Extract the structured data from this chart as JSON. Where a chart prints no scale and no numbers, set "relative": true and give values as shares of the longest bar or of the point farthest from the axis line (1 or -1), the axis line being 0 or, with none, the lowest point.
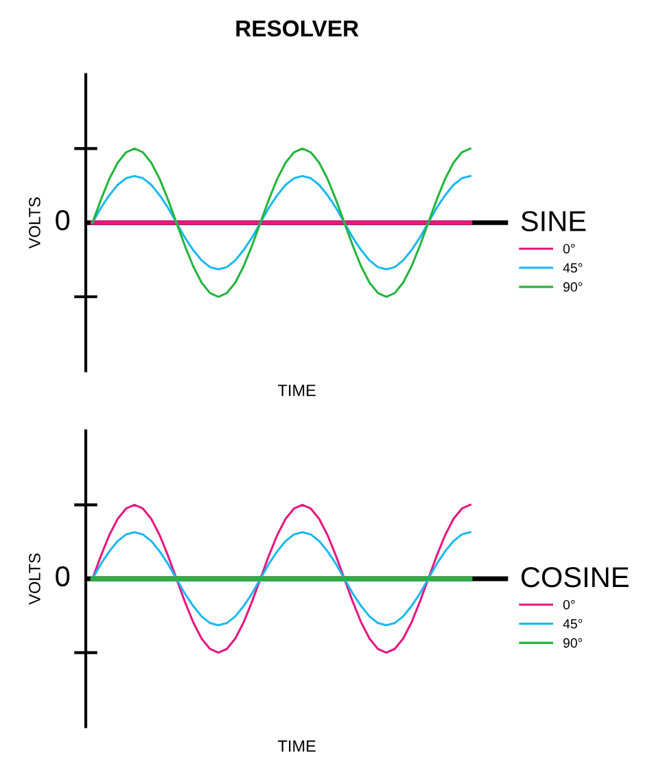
{
  "chart_data": [
    {
      "type": "line",
      "title": "RESOLVER",
      "xlabel": "TIME",
      "ylabel": "VOLTS",
      "legend_title": "SINE",
      "legend": "right",
      "relative": true,
      "annotations": [
        "0"
      ],
      "categories": [
        null,
        null,
        null,
        null,
        null,
        null,
        null,
        null,
        null,
        null,
        null,
        null,
        null,
        null,
        null,
        null,
        null,
        null,
        null,
        null,
        null,
        null,
        null,
        null,
        null,
        null,
        null,
        null,
        null,
        null,
        null,
        null,
        null,
        null,
        null,
        null,
        null,
        null,
        null,
        null,
        null,
        null,
        null,
        null,
        null,
        null
      ],
      "series": [
        {
          "name": "0°",
          "color": "#e6177f",
          "values": [
            0,
            0,
            0,
            0,
            0,
            0,
            0,
            0,
            0,
            0,
            0,
            0,
            0,
            0,
            0,
            0,
            0,
            0,
            0,
            0,
            0,
            0,
            0,
            0,
            0,
            0,
            0,
            0,
            0,
            0,
            0,
            0,
            0,
            0,
            0,
            0,
            0,
            0,
            0,
            0,
            0,
            0,
            0,
            0,
            0,
            0
          ]
        },
        {
          "name": "45°",
          "color": "#1ab8f0",
          "values": [
            0,
            0.2,
            0.37,
            0.51,
            0.6,
            0.63,
            0.6,
            0.51,
            0.37,
            0.2,
            0,
            -0.2,
            -0.37,
            -0.51,
            -0.6,
            -0.63,
            -0.6,
            -0.51,
            -0.37,
            -0.2,
            0,
            0.2,
            0.37,
            0.51,
            0.6,
            0.63,
            0.6,
            0.51,
            0.37,
            0.2,
            0,
            -0.2,
            -0.37,
            -0.51,
            -0.6,
            -0.63,
            -0.6,
            -0.51,
            -0.37,
            -0.2,
            0,
            0.2,
            0.37,
            0.51,
            0.6,
            0.63
          ]
        },
        {
          "name": "90°",
          "color": "#22b53c",
          "values": [
            0,
            0.31,
            0.59,
            0.81,
            0.95,
            1,
            0.95,
            0.81,
            0.59,
            0.31,
            0,
            -0.31,
            -0.59,
            -0.81,
            -0.95,
            -1,
            -0.95,
            -0.81,
            -0.59,
            -0.31,
            0,
            0.31,
            0.59,
            0.81,
            0.95,
            1,
            0.95,
            0.81,
            0.59,
            0.31,
            0,
            -0.31,
            -0.59,
            -0.81,
            -0.95,
            -1,
            -0.95,
            -0.81,
            -0.59,
            -0.31,
            0,
            0.31,
            0.59,
            0.81,
            0.95,
            1
          ]
        }
      ]
    },
    {
      "type": "line",
      "xlabel": "TIME",
      "ylabel": "VOLTS",
      "legend_title": "COSINE",
      "legend": "right",
      "relative": true,
      "annotations": [
        "0"
      ],
      "categories": [
        null,
        null,
        null,
        null,
        null,
        null,
        null,
        null,
        null,
        null,
        null,
        null,
        null,
        null,
        null,
        null,
        null,
        null,
        null,
        null,
        null,
        null,
        null,
        null,
        null,
        null,
        null,
        null,
        null,
        null,
        null,
        null,
        null,
        null,
        null,
        null,
        null,
        null,
        null,
        null,
        null,
        null,
        null,
        null,
        null,
        null
      ],
      "series": [
        {
          "name": "0°",
          "color": "#e6177f",
          "values": [
            0,
            0.31,
            0.59,
            0.81,
            0.95,
            1,
            0.95,
            0.81,
            0.59,
            0.31,
            0,
            -0.31,
            -0.59,
            -0.81,
            -0.95,
            -1,
            -0.95,
            -0.81,
            -0.59,
            -0.31,
            0,
            0.31,
            0.59,
            0.81,
            0.95,
            1,
            0.95,
            0.81,
            0.59,
            0.31,
            0,
            -0.31,
            -0.59,
            -0.81,
            -0.95,
            -1,
            -0.95,
            -0.81,
            -0.59,
            -0.31,
            0,
            0.31,
            0.59,
            0.81,
            0.95,
            1
          ]
        },
        {
          "name": "45°",
          "color": "#1ab8f0",
          "values": [
            0,
            0.2,
            0.37,
            0.51,
            0.6,
            0.63,
            0.6,
            0.51,
            0.37,
            0.2,
            0,
            -0.2,
            -0.37,
            -0.51,
            -0.6,
            -0.63,
            -0.6,
            -0.51,
            -0.37,
            -0.2,
            0,
            0.2,
            0.37,
            0.51,
            0.6,
            0.63,
            0.6,
            0.51,
            0.37,
            0.2,
            0,
            -0.2,
            -0.37,
            -0.51,
            -0.6,
            -0.63,
            -0.6,
            -0.51,
            -0.37,
            -0.2,
            0,
            0.2,
            0.37,
            0.51,
            0.6,
            0.63
          ]
        },
        {
          "name": "90°",
          "color": "#22b53c",
          "values": [
            0,
            0,
            0,
            0,
            0,
            0,
            0,
            0,
            0,
            0,
            0,
            0,
            0,
            0,
            0,
            0,
            0,
            0,
            0,
            0,
            0,
            0,
            0,
            0,
            0,
            0,
            0,
            0,
            0,
            0,
            0,
            0,
            0,
            0,
            0,
            0,
            0,
            0,
            0,
            0,
            0,
            0,
            0,
            0,
            0,
            0
          ]
        }
      ]
    }
  ]
}
